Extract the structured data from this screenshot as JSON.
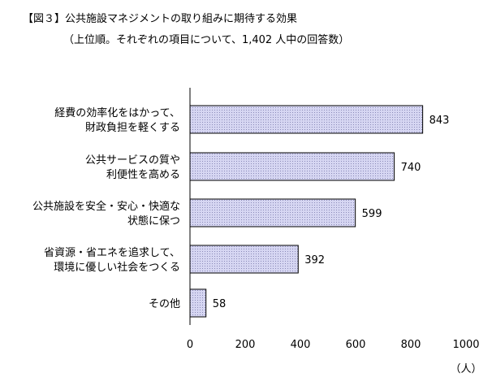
{
  "chart_data": {
    "type": "bar",
    "orientation": "horizontal",
    "title": "【図３】公共施設マネジメントの取り組みに期待する効果",
    "subtitle": "（上位順。それぞれの項目について、1,402 人中の回答数）",
    "categories": [
      [
        "経費の効率化をはかって、",
        "財政負担を軽くする"
      ],
      [
        "公共サービスの質や",
        "利便性を高める"
      ],
      [
        "公共施設を安全・安心・快適な",
        "状態に保つ"
      ],
      [
        "省資源・省エネを追求して、",
        "環境に優しい社会をつくる"
      ],
      [
        "その他"
      ]
    ],
    "values": [
      843,
      740,
      599,
      392,
      58
    ],
    "xlim": [
      0,
      1000
    ],
    "xticks": [
      0,
      200,
      400,
      600,
      800,
      1000
    ],
    "xlabel": "（人）",
    "grid": false,
    "legend": "none",
    "bar_color": "#d6d6f2",
    "bar_stroke": "#000000"
  }
}
